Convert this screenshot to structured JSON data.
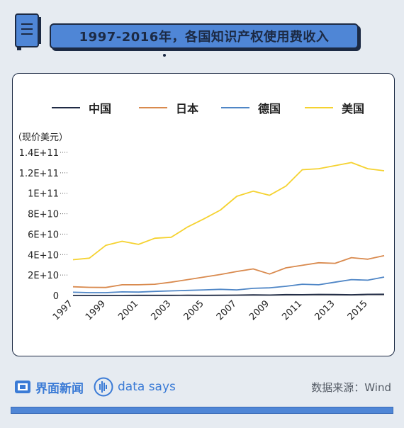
{
  "title": "1997-2016年，各国知识产权使用费收入",
  "footer": {
    "brand": "界面新闻",
    "data_says": "data says",
    "source": "数据来源：Wind"
  },
  "colors": {
    "accent": "#4f86d6",
    "china": "#1f2a44",
    "japan": "#d98a4e",
    "germany": "#4f86c6",
    "usa": "#f5d230"
  },
  "chart_data": {
    "type": "line",
    "unit_label": "（现价美元）",
    "x": [
      1997,
      1998,
      1999,
      2000,
      2001,
      2002,
      2003,
      2004,
      2005,
      2006,
      2007,
      2008,
      2009,
      2010,
      2011,
      2012,
      2013,
      2014,
      2015,
      2016
    ],
    "x_tick_labels": [
      "1997",
      "1999",
      "2001",
      "2003",
      "2005",
      "2007",
      "2009",
      "2011",
      "2013",
      "2015"
    ],
    "y_tick_labels": [
      "0",
      "2E+10",
      "4E+10",
      "6E+10",
      "8E+10",
      "1E+11",
      "1.2E+11",
      "1.4E+11"
    ],
    "ylim": [
      0,
      140000000000
    ],
    "legend_position": "top",
    "series": [
      {
        "name": "中国",
        "values": [
          50000000.0,
          60000000.0,
          80000000.0,
          80000000.0,
          110000000.0,
          130000000.0,
          110000000.0,
          240000000.0,
          160000000.0,
          200000000.0,
          340000000.0,
          570000000.0,
          430000000.0,
          830000000.0,
          740000000.0,
          1040000000.0,
          890000000.0,
          680000000.0,
          1080000000.0,
          1160000000.0
        ]
      },
      {
        "name": "日本",
        "values": [
          8500000000.0,
          8000000000.0,
          7800000000.0,
          10500000000.0,
          10500000000.0,
          11000000000.0,
          13000000000.0,
          15500000000.0,
          18000000000.0,
          20500000000.0,
          23500000000.0,
          26000000000.0,
          21000000000.0,
          27000000000.0,
          29500000000.0,
          32000000000.0,
          31500000000.0,
          37000000000.0,
          35500000000.0,
          39000000000.0
        ]
      },
      {
        "name": "德国",
        "values": [
          3200000000.0,
          2800000000.0,
          2800000000.0,
          3500000000.0,
          3300000000.0,
          4000000000.0,
          4500000000.0,
          5000000000.0,
          5500000000.0,
          6000000000.0,
          5500000000.0,
          7000000000.0,
          7500000000.0,
          9000000000.0,
          11000000000.0,
          10500000000.0,
          13000000000.0,
          15500000000.0,
          15000000000.0,
          18000000000.0
        ]
      },
      {
        "name": "美国",
        "values": [
          35000000000.0,
          36500000000.0,
          49000000000.0,
          53000000000.0,
          50000000000.0,
          56000000000.0,
          57000000000.0,
          67000000000.0,
          75000000000.0,
          83500000000.0,
          97000000000.0,
          102000000000.0,
          98000000000.0,
          107000000000.0,
          123000000000.0,
          124000000000.0,
          127000000000.0,
          130000000000.0,
          124000000000.0,
          122000000000.0
        ]
      }
    ]
  }
}
